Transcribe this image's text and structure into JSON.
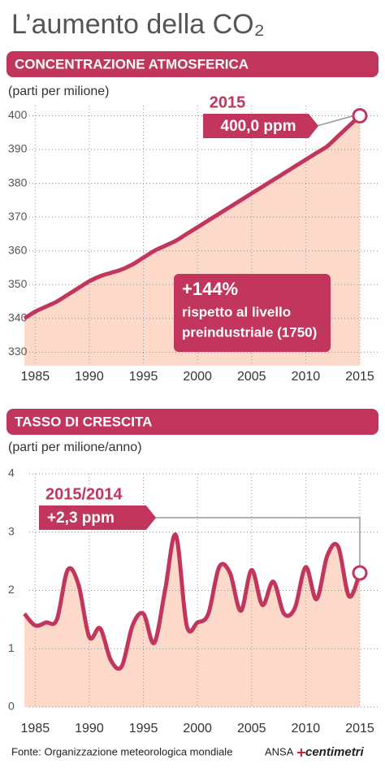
{
  "title": "L’aumento della CO₂",
  "chart_data": [
    {
      "type": "area",
      "title": "CONCENTRAZIONE ATMOSFERICA",
      "y_label": "(parti per milione)",
      "x": [
        1984,
        1985,
        1986,
        1987,
        1988,
        1989,
        1990,
        1991,
        1992,
        1993,
        1994,
        1995,
        1996,
        1997,
        1998,
        1999,
        2000,
        2001,
        2002,
        2003,
        2004,
        2005,
        2006,
        2007,
        2008,
        2009,
        2010,
        2011,
        2012,
        2013,
        2014,
        2015
      ],
      "values": [
        340,
        342,
        343.5,
        345,
        347,
        349,
        351,
        352.5,
        353.5,
        354.5,
        356,
        358,
        360,
        361.5,
        363,
        365,
        367,
        369,
        371,
        373,
        375,
        377,
        379,
        381,
        383,
        385,
        387,
        389,
        391,
        394,
        397,
        400
      ],
      "color": "#c2365e",
      "fill_color": "#fcd9c9",
      "xlim": [
        1984,
        2015
      ],
      "xticks": [
        1985,
        1990,
        1995,
        2000,
        2005,
        2010,
        2015
      ],
      "ylim": [
        326,
        403
      ],
      "yticks": [
        330,
        340,
        350,
        360,
        370,
        380,
        390,
        400
      ],
      "grid": true,
      "callout": {
        "label": "2015",
        "value": "400,0 ppm"
      },
      "note": [
        "+144%",
        "rispetto al livello",
        "preindustriale (1750)"
      ]
    },
    {
      "type": "area",
      "title": "TASSO DI CRESCITA",
      "y_label": "(parti per milione/anno)",
      "x": [
        1984,
        1985,
        1986,
        1987,
        1988,
        1989,
        1990,
        1991,
        1992,
        1993,
        1994,
        1995,
        1996,
        1997,
        1998,
        1999,
        2000,
        2001,
        2002,
        2003,
        2004,
        2005,
        2006,
        2007,
        2008,
        2009,
        2010,
        2011,
        2012,
        2013,
        2014,
        2015
      ],
      "values": [
        1.6,
        1.4,
        1.45,
        1.5,
        2.35,
        2.1,
        1.2,
        1.35,
        0.8,
        0.7,
        1.4,
        1.6,
        1.1,
        2.0,
        2.95,
        1.4,
        1.45,
        1.6,
        2.4,
        2.3,
        1.65,
        2.35,
        1.75,
        2.15,
        1.6,
        1.7,
        2.4,
        1.85,
        2.6,
        2.75,
        1.9,
        2.3
      ],
      "color": "#c2365e",
      "fill_color": "#fcd9c9",
      "xlim": [
        1984,
        2015
      ],
      "xticks": [
        1985,
        1990,
        1995,
        2000,
        2005,
        2010,
        2015
      ],
      "ylim": [
        0,
        4
      ],
      "yticks": [
        0,
        1,
        2,
        3,
        4
      ],
      "grid": true,
      "callout": {
        "label": "2015/2014",
        "value": "+2,3 ppm"
      }
    }
  ],
  "source": "Fonte: Organizzazione meteorologica mondiale",
  "logo": [
    "ANSA",
    "centimetri"
  ]
}
